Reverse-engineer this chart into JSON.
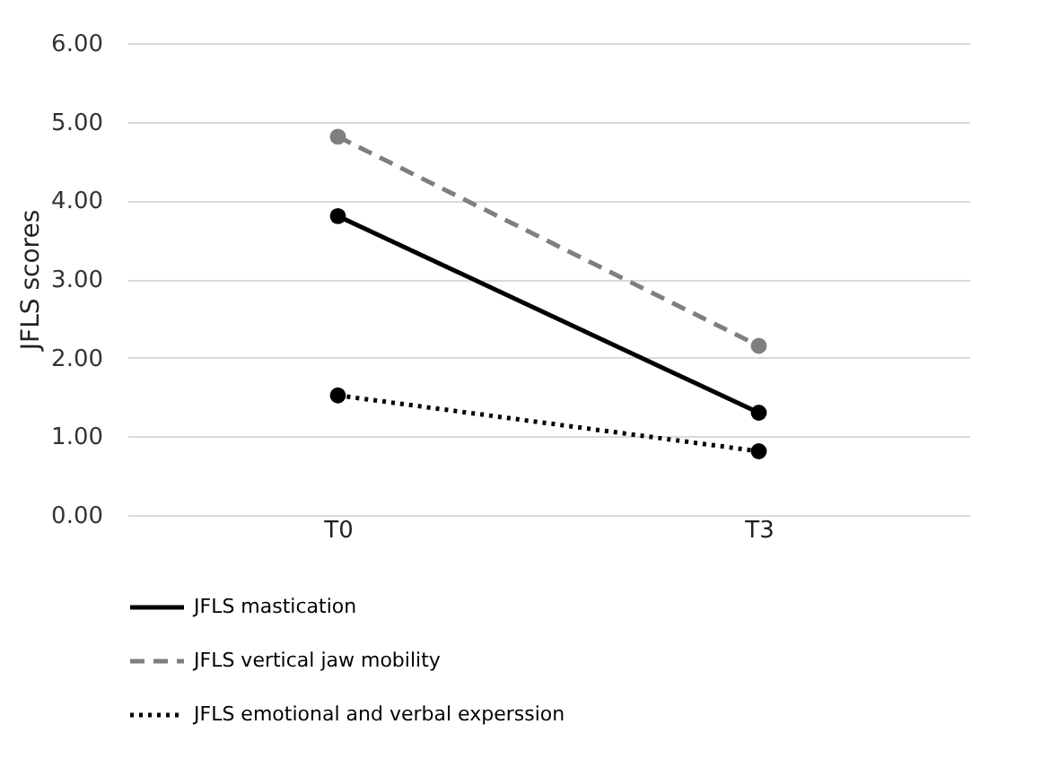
{
  "chart_data": {
    "type": "line",
    "ylabel": "JFLS scores",
    "categories": [
      "T0",
      "T3"
    ],
    "series": [
      {
        "name": "JFLS mastication",
        "color": "#000000",
        "line_style": "solid",
        "values": [
          3.8,
          1.3
        ]
      },
      {
        "name": "JFLS vertical jaw mobility",
        "color": "#7f7f7f",
        "line_style": "dashed",
        "values": [
          4.81,
          2.15
        ]
      },
      {
        "name": "JFLS emotional and verbal experssion",
        "color": "#000000",
        "line_style": "dotted",
        "values": [
          1.52,
          0.81
        ]
      }
    ],
    "ylim": [
      0,
      6
    ],
    "yticks": [
      {
        "value": 0,
        "label": "0.00"
      },
      {
        "value": 1,
        "label": "1.00"
      },
      {
        "value": 2,
        "label": "2.00"
      },
      {
        "value": 3,
        "label": "3.00"
      },
      {
        "value": 4,
        "label": "4.00"
      },
      {
        "value": 5,
        "label": "5.00"
      },
      {
        "value": 6,
        "label": "6.00"
      }
    ],
    "grid": "y",
    "legend": "bottom",
    "marker": "circle"
  }
}
